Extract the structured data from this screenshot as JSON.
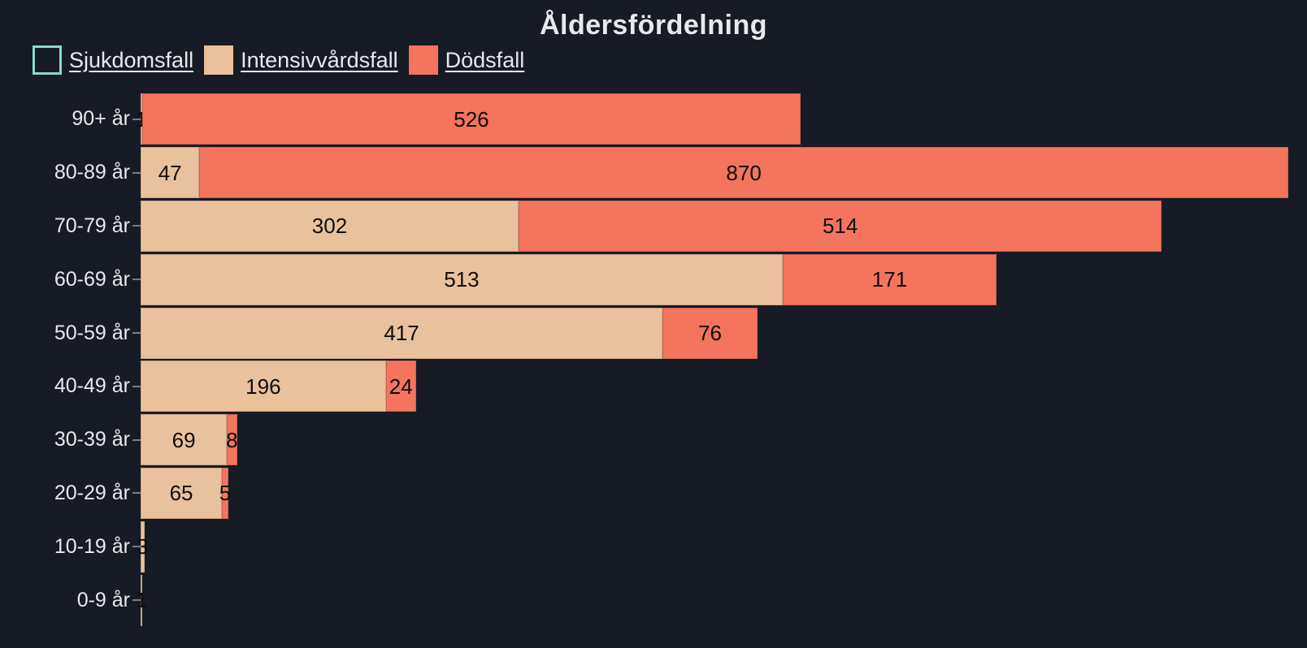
{
  "chart": {
    "title": "Åldersfördelning"
  },
  "colors": {
    "background": "#171B26",
    "text": "#E7E9EC",
    "bar_label": "#0D0D0D",
    "tick": "#777B82",
    "sjukdomsfall": "#89D9C4",
    "intensivvardsfall": "#E9C19C",
    "dodsfall": "#F4745E"
  },
  "legend": [
    {
      "key": "sjukdomsfall",
      "label": "Sjukdomsfall",
      "color": "#89D9C4",
      "swatch": "outline",
      "series_hidden": true
    },
    {
      "key": "intensivvardsfall",
      "label": "Intensivvårdsfall",
      "color": "#E9C19C",
      "swatch": "filled",
      "series_hidden": false
    },
    {
      "key": "dodsfall",
      "label": "Dödsfall",
      "color": "#F4745E",
      "swatch": "filled",
      "series_hidden": false
    }
  ],
  "chart_data": {
    "type": "bar",
    "orientation": "horizontal",
    "stacked": true,
    "title": "Åldersfördelning",
    "categories": [
      "90+ år",
      "80-89 år",
      "70-79 år",
      "60-69 år",
      "50-59 år",
      "40-49 år",
      "30-39 år",
      "20-29 år",
      "10-19 år",
      "0-9 år"
    ],
    "series": [
      {
        "key": "sjukdomsfall",
        "name": "Sjukdomsfall",
        "color": "#89D9C4",
        "visible": false,
        "values": []
      },
      {
        "key": "intensivvardsfall",
        "name": "Intensivvårdsfall",
        "color": "#E9C19C",
        "visible": true,
        "values": [
          1,
          47,
          302,
          513,
          417,
          196,
          69,
          65,
          3,
          1
        ]
      },
      {
        "key": "dodsfall",
        "name": "Dödsfall",
        "color": "#F4745E",
        "visible": true,
        "values": [
          526,
          870,
          514,
          171,
          76,
          24,
          8,
          5,
          0,
          0
        ]
      }
    ],
    "xlim": [
      0,
      932
    ],
    "grid": false,
    "legend_position": "top-left",
    "value_labels": "inside-center"
  }
}
